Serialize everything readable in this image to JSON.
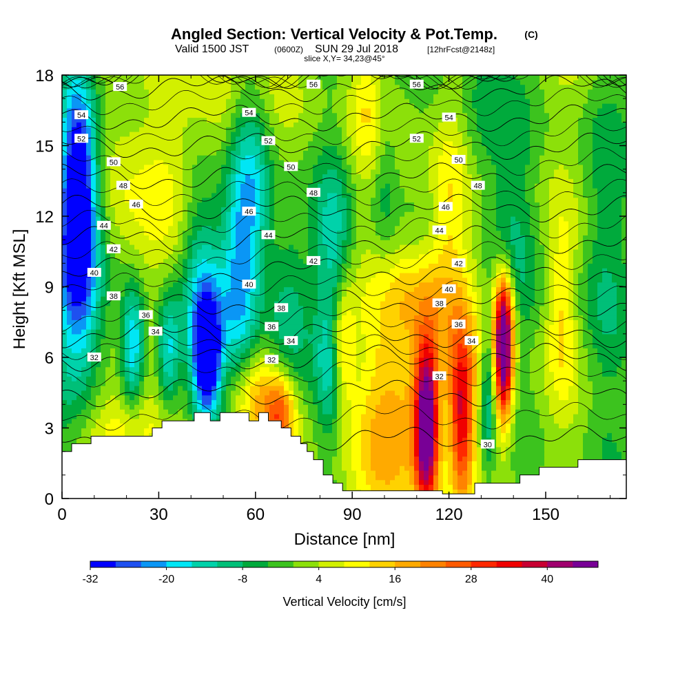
{
  "title": {
    "main": "Angled Section: Vertical Velocity & Pot.Temp.",
    "main_units": "(C)",
    "valid_prefix": "Valid 1500 JST",
    "valid_utc": "(0600Z)",
    "valid_date": "SUN 29 Jul 2018",
    "valid_fcst": "[12hrFcst@2148z]",
    "slice": "slice X,Y= 34,23@45°"
  },
  "chart_data": {
    "type": "heatmap",
    "title": "Angled Section: Vertical Velocity & Pot.Temp.",
    "xlabel": "Distance [nm]",
    "ylabel": "Height [Kft MSL]",
    "xlim": [
      0,
      175
    ],
    "ylim": [
      0,
      18
    ],
    "x_ticks": [
      0,
      30,
      60,
      90,
      120,
      150
    ],
    "y_ticks": [
      0,
      3,
      6,
      9,
      12,
      15,
      18
    ],
    "grid": false,
    "colorbar": {
      "label": "Vertical Velocity [cm/s]",
      "tick_labels": [
        "-32",
        "-20",
        "-8",
        "4",
        "16",
        "28",
        "40"
      ],
      "tick_values": [
        -32,
        -20,
        -8,
        4,
        16,
        28,
        40
      ],
      "range": [
        -32,
        48
      ],
      "colors": [
        "#0000ff",
        "#1e50f0",
        "#0a96f5",
        "#00e6f5",
        "#00d2aa",
        "#00bf78",
        "#00aa3c",
        "#3cc31e",
        "#8ce00a",
        "#d2f000",
        "#ffff00",
        "#ffd200",
        "#ffaa00",
        "#ff8200",
        "#ff5a00",
        "#ff2800",
        "#f00000",
        "#c80032",
        "#a0006e",
        "#780096"
      ]
    },
    "terrain": [
      [
        0,
        2
      ],
      [
        3,
        2
      ],
      [
        3,
        2.33
      ],
      [
        9,
        2.33
      ],
      [
        9,
        2.65
      ],
      [
        28,
        2.65
      ],
      [
        28,
        3
      ],
      [
        31,
        3
      ],
      [
        31,
        3.3
      ],
      [
        41,
        3.3
      ],
      [
        41,
        3.65
      ],
      [
        46,
        3.65
      ],
      [
        46,
        3.3
      ],
      [
        49,
        3.3
      ],
      [
        49,
        3.65
      ],
      [
        58,
        3.65
      ],
      [
        58,
        3.3
      ],
      [
        61,
        3.3
      ],
      [
        61,
        3.65
      ],
      [
        64,
        3.65
      ],
      [
        64,
        3.3
      ],
      [
        68,
        3.3
      ],
      [
        68,
        3
      ],
      [
        71,
        3
      ],
      [
        71,
        2.65
      ],
      [
        74,
        2.65
      ],
      [
        74,
        2.33
      ],
      [
        76,
        2.33
      ],
      [
        76,
        2
      ],
      [
        78,
        2
      ],
      [
        78,
        1.65
      ],
      [
        81,
        1.65
      ],
      [
        81,
        1
      ],
      [
        84,
        1
      ],
      [
        84,
        0.65
      ],
      [
        87,
        0.65
      ],
      [
        87,
        0.33
      ],
      [
        118,
        0.33
      ],
      [
        118,
        0.2
      ],
      [
        128,
        0.2
      ],
      [
        128,
        0.65
      ],
      [
        142,
        0.65
      ],
      [
        142,
        1
      ],
      [
        148,
        1
      ],
      [
        148,
        1.33
      ],
      [
        160,
        1.33
      ],
      [
        160,
        1.65
      ],
      [
        175,
        1.65
      ]
    ],
    "field_base": 2,
    "field_noise": [
      {
        "x": 0,
        "y": 0,
        "sx": 1,
        "sy": 1,
        "a": -1.5
      },
      {
        "x": 175,
        "y": 0,
        "sx": 1,
        "sy": 1,
        "a": 0
      }
    ],
    "field_cells": [
      {
        "x": 5,
        "y": 13.5,
        "sx": 4,
        "sy": 3.5,
        "a": -36
      },
      {
        "x": 6,
        "y": 9.5,
        "sx": 6,
        "sy": 4,
        "a": -16
      },
      {
        "x": 3,
        "y": 7,
        "sx": 6,
        "sy": 3,
        "a": -8
      },
      {
        "x": 22,
        "y": 6.5,
        "sx": 2.5,
        "sy": 1.8,
        "a": -22
      },
      {
        "x": 33,
        "y": 6.2,
        "sx": 2.5,
        "sy": 1.8,
        "a": -20
      },
      {
        "x": 45,
        "y": 6,
        "sx": 3,
        "sy": 1.8,
        "a": -34
      },
      {
        "x": 43,
        "y": 8.5,
        "sx": 5,
        "sy": 4,
        "a": -20
      },
      {
        "x": 55,
        "y": 10,
        "sx": 4,
        "sy": 4,
        "a": -20
      },
      {
        "x": 70,
        "y": 8,
        "sx": 5,
        "sy": 3,
        "a": -14
      },
      {
        "x": 84,
        "y": 10.5,
        "sx": 4,
        "sy": 3,
        "a": -14
      },
      {
        "x": 83,
        "y": 5,
        "sx": 3,
        "sy": 2,
        "a": -12
      },
      {
        "x": 132,
        "y": 4.5,
        "sx": 1.8,
        "sy": 2.5,
        "a": -16
      },
      {
        "x": 60,
        "y": 4.3,
        "sx": 6,
        "sy": 1.5,
        "a": 16
      },
      {
        "x": 68,
        "y": 3.5,
        "sx": 3,
        "sy": 1.2,
        "a": 20
      },
      {
        "x": 87,
        "y": 6.5,
        "sx": 2.5,
        "sy": 1.8,
        "a": 18
      },
      {
        "x": 102,
        "y": 3,
        "sx": 8,
        "sy": 3,
        "a": 14
      },
      {
        "x": 113,
        "y": 3,
        "sx": 2.5,
        "sy": 2.5,
        "a": 48
      },
      {
        "x": 124,
        "y": 3.5,
        "sx": 2.5,
        "sy": 2.5,
        "a": 28
      },
      {
        "x": 118,
        "y": 5.5,
        "sx": 10,
        "sy": 2.5,
        "a": 10
      },
      {
        "x": 137,
        "y": 6,
        "sx": 2,
        "sy": 2,
        "a": 46
      },
      {
        "x": 137,
        "y": 8,
        "sx": 2.5,
        "sy": 1.5,
        "a": 18
      },
      {
        "x": 20,
        "y": 2.8,
        "sx": 10,
        "sy": 1.2,
        "a": 12
      },
      {
        "x": 155,
        "y": 8,
        "sx": 3,
        "sy": 2.5,
        "a": 10
      },
      {
        "x": 50,
        "y": 16,
        "sx": 6,
        "sy": 3,
        "a": 8
      },
      {
        "x": 120,
        "y": 12,
        "sx": 4,
        "sy": 3,
        "a": 10
      },
      {
        "x": 130,
        "y": 16,
        "sx": 5,
        "sy": 3,
        "a": -8
      },
      {
        "x": 140,
        "y": 11,
        "sx": 5,
        "sy": 4,
        "a": -9
      },
      {
        "x": 100,
        "y": 14,
        "sx": 3,
        "sy": 3,
        "a": -9
      },
      {
        "x": 168,
        "y": 10,
        "sx": 6,
        "sy": 6,
        "a": -8
      },
      {
        "x": 60,
        "y": 13,
        "sx": 4,
        "sy": 3,
        "a": -14
      },
      {
        "x": 25,
        "y": 13,
        "sx": 10,
        "sy": 4,
        "a": 8
      },
      {
        "x": 110,
        "y": 9,
        "sx": 8,
        "sy": 1.5,
        "a": 10
      },
      {
        "x": 95,
        "y": 16.5,
        "sx": 4,
        "sy": 2,
        "a": 8
      }
    ],
    "theta_levels": [
      30,
      32,
      34,
      36,
      38,
      40,
      42,
      44,
      46,
      48,
      50,
      52,
      54,
      56
    ],
    "theta_profile": [
      [
        0,
        27
      ],
      [
        1,
        28.5
      ],
      [
        3,
        30.5
      ],
      [
        5,
        32.5
      ],
      [
        6,
        34
      ],
      [
        7,
        36
      ],
      [
        8,
        37.5
      ],
      [
        9,
        39
      ],
      [
        10,
        40.5
      ],
      [
        11,
        42
      ],
      [
        12,
        43.5
      ],
      [
        13,
        45
      ],
      [
        14,
        46.5
      ],
      [
        15,
        48
      ],
      [
        16,
        49.7
      ],
      [
        17,
        51.2
      ],
      [
        18,
        53
      ]
    ],
    "contour_labels": [
      {
        "v": "56",
        "x": 18,
        "y": 17.5
      },
      {
        "v": "56",
        "x": 78,
        "y": 17.6
      },
      {
        "v": "56",
        "x": 110,
        "y": 17.6
      },
      {
        "v": "54",
        "x": 6,
        "y": 16.3
      },
      {
        "v": "54",
        "x": 58,
        "y": 16.4
      },
      {
        "v": "54",
        "x": 120,
        "y": 16.2
      },
      {
        "v": "52",
        "x": 6,
        "y": 15.3
      },
      {
        "v": "52",
        "x": 64,
        "y": 15.2
      },
      {
        "v": "52",
        "x": 110,
        "y": 15.3
      },
      {
        "v": "50",
        "x": 16,
        "y": 14.3
      },
      {
        "v": "50",
        "x": 71,
        "y": 14.1
      },
      {
        "v": "50",
        "x": 123,
        "y": 14.4
      },
      {
        "v": "48",
        "x": 19,
        "y": 13.3
      },
      {
        "v": "48",
        "x": 78,
        "y": 13
      },
      {
        "v": "48",
        "x": 129,
        "y": 13.3
      },
      {
        "v": "46",
        "x": 23,
        "y": 12.5
      },
      {
        "v": "46",
        "x": 58,
        "y": 12.2
      },
      {
        "v": "46",
        "x": 119,
        "y": 12.4
      },
      {
        "v": "44",
        "x": 13,
        "y": 11.6
      },
      {
        "v": "44",
        "x": 64,
        "y": 11.2
      },
      {
        "v": "44",
        "x": 117,
        "y": 11.4
      },
      {
        "v": "42",
        "x": 16,
        "y": 10.6
      },
      {
        "v": "42",
        "x": 78,
        "y": 10.1
      },
      {
        "v": "42",
        "x": 123,
        "y": 10
      },
      {
        "v": "40",
        "x": 10,
        "y": 9.6
      },
      {
        "v": "40",
        "x": 58,
        "y": 9.1
      },
      {
        "v": "40",
        "x": 120,
        "y": 8.9
      },
      {
        "v": "38",
        "x": 16,
        "y": 8.6
      },
      {
        "v": "38",
        "x": 68,
        "y": 8.1
      },
      {
        "v": "38",
        "x": 117,
        "y": 8.3
      },
      {
        "v": "36",
        "x": 26,
        "y": 7.8
      },
      {
        "v": "36",
        "x": 65,
        "y": 7.3
      },
      {
        "v": "36",
        "x": 123,
        "y": 7.4
      },
      {
        "v": "34",
        "x": 29,
        "y": 7.1
      },
      {
        "v": "34",
        "x": 71,
        "y": 6.7
      },
      {
        "v": "34",
        "x": 127,
        "y": 6.7
      },
      {
        "v": "32",
        "x": 10,
        "y": 6
      },
      {
        "v": "32",
        "x": 65,
        "y": 5.9
      },
      {
        "v": "32",
        "x": 117,
        "y": 5.2
      },
      {
        "v": "30",
        "x": 132,
        "y": 2.3
      }
    ]
  }
}
